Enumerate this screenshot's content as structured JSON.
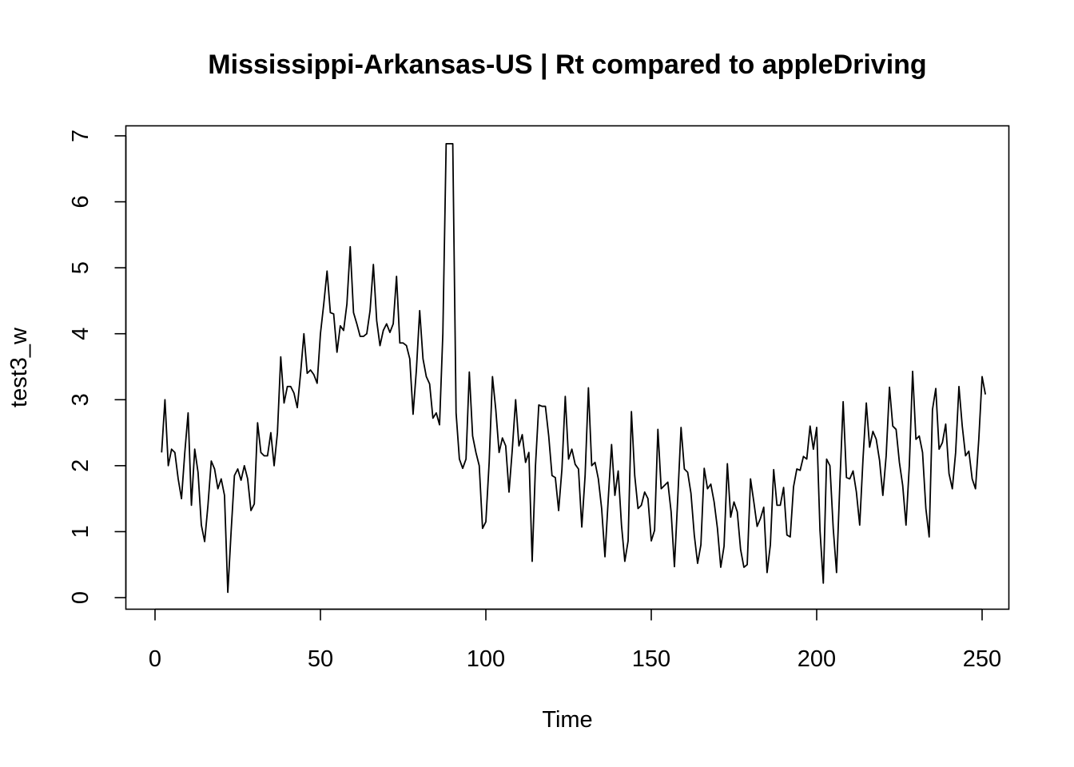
{
  "chart_data": {
    "type": "line",
    "title": "Mississippi-Arkansas-US | Rt compared to appleDriving",
    "xlabel": "Time",
    "ylabel": "test3_w",
    "xlim": [
      0,
      250
    ],
    "ylim": [
      0,
      7
    ],
    "x_ticks": [
      0,
      50,
      100,
      150,
      200,
      250
    ],
    "y_ticks": [
      0,
      1,
      2,
      3,
      4,
      5,
      6,
      7
    ],
    "x_tick_labels": [
      "0",
      "50",
      "100",
      "150",
      "200",
      "250"
    ],
    "y_tick_labels": [
      "0",
      "1",
      "2",
      "3",
      "4",
      "5",
      "6",
      "7"
    ],
    "grid": false,
    "color": "#000000",
    "series": [
      {
        "x_start": 2,
        "x_step": 1,
        "values": [
          2.2,
          3.0,
          2.0,
          2.25,
          2.2,
          1.8,
          1.5,
          2.2,
          2.8,
          1.4,
          2.25,
          1.9,
          1.1,
          0.85,
          1.4,
          2.07,
          1.95,
          1.65,
          1.8,
          1.55,
          0.08,
          1.0,
          1.85,
          1.95,
          1.78,
          2.0,
          1.8,
          1.32,
          1.42,
          2.65,
          2.2,
          2.15,
          2.15,
          2.5,
          2.0,
          2.5,
          3.65,
          2.95,
          3.2,
          3.2,
          3.1,
          2.88,
          3.4,
          4.0,
          3.4,
          3.45,
          3.38,
          3.25,
          4.0,
          4.45,
          4.95,
          4.32,
          4.3,
          3.72,
          4.12,
          4.05,
          4.45,
          5.32,
          4.32,
          4.15,
          3.96,
          3.96,
          4.0,
          4.35,
          5.05,
          4.2,
          3.82,
          4.05,
          4.15,
          4.02,
          4.15,
          4.87,
          3.86,
          3.86,
          3.82,
          3.62,
          2.78,
          3.45,
          4.35,
          3.62,
          3.35,
          3.24,
          2.72,
          2.8,
          2.62,
          4.0,
          6.88,
          6.88,
          6.88,
          2.8,
          2.1,
          1.96,
          2.1,
          3.42,
          2.45,
          2.2,
          2.0,
          1.05,
          1.15,
          2.05,
          3.35,
          2.85,
          2.2,
          2.42,
          2.3,
          1.6,
          2.25,
          3.0,
          2.3,
          2.47,
          2.05,
          2.2,
          0.55,
          2.0,
          2.92,
          2.9,
          2.9,
          2.45,
          1.85,
          1.82,
          1.32,
          1.95,
          3.05,
          2.1,
          2.25,
          2.02,
          1.95,
          1.07,
          1.85,
          3.18,
          2.0,
          2.05,
          1.8,
          1.35,
          0.62,
          1.5,
          2.32,
          1.55,
          1.92,
          1.1,
          0.55,
          0.86,
          2.82,
          1.85,
          1.35,
          1.4,
          1.6,
          1.5,
          0.86,
          1.02,
          2.55,
          1.65,
          1.7,
          1.75,
          1.3,
          0.47,
          1.5,
          2.58,
          1.95,
          1.9,
          1.58,
          0.95,
          0.52,
          0.8,
          1.96,
          1.65,
          1.72,
          1.45,
          1.05,
          0.46,
          0.78,
          2.03,
          1.22,
          1.45,
          1.3,
          0.73,
          0.46,
          0.5,
          1.8,
          1.45,
          1.08,
          1.2,
          1.37,
          0.38,
          0.8,
          1.94,
          1.4,
          1.4,
          1.67,
          0.95,
          0.92,
          1.68,
          1.95,
          1.93,
          2.14,
          2.1,
          2.6,
          2.25,
          2.58,
          1.02,
          0.22,
          2.1,
          2.0,
          1.05,
          0.38,
          1.72,
          2.97,
          1.82,
          1.8,
          1.92,
          1.6,
          1.1,
          2.1,
          2.95,
          2.28,
          2.52,
          2.4,
          2.08,
          1.55,
          2.15,
          3.19,
          2.6,
          2.55,
          2.05,
          1.7,
          1.1,
          2.0,
          3.43,
          2.4,
          2.45,
          2.2,
          1.35,
          0.92,
          2.85,
          3.17,
          2.25,
          2.35,
          2.63,
          1.88,
          1.65,
          2.2,
          3.2,
          2.6,
          2.15,
          2.22,
          1.8,
          1.65,
          2.4,
          3.35,
          3.08
        ]
      }
    ]
  }
}
